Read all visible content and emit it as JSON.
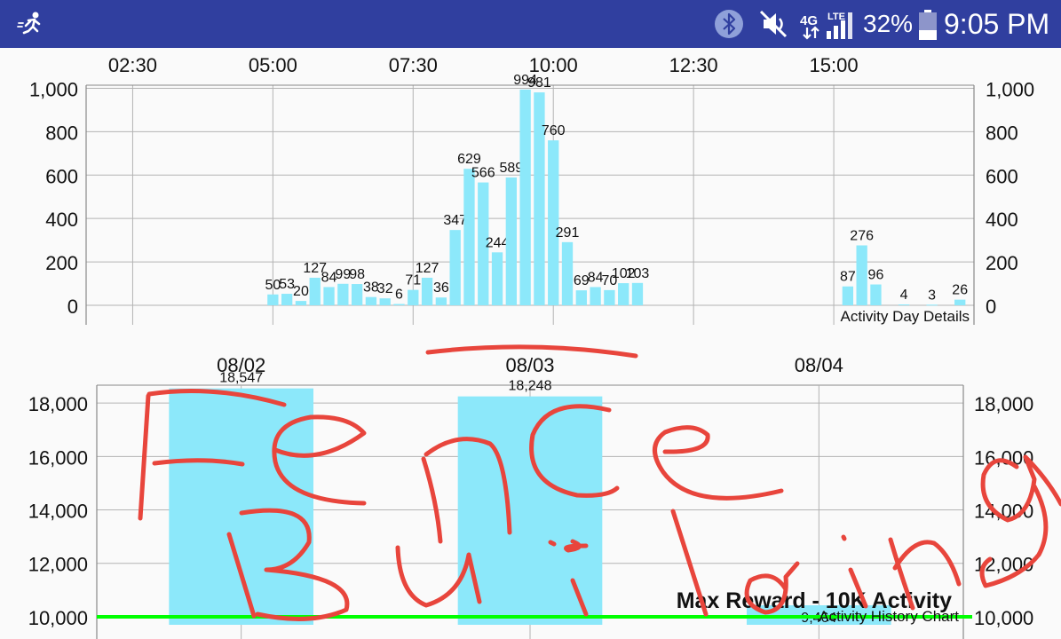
{
  "status_bar": {
    "app_icon": "running-person-icon",
    "icons": [
      "bluetooth-icon",
      "volume-mute-icon",
      "lte-signal-icon",
      "battery-icon"
    ],
    "network_label_top": "LTE",
    "network_label": "4G",
    "battery_percent": "32%",
    "time": "9:05 PM",
    "colors": {
      "background": "#303f9f",
      "text": "#ffffff"
    }
  },
  "chart_data": [
    {
      "type": "bar",
      "title": "Activity Day Details",
      "x_ticks": [
        "02:30",
        "05:00",
        "07:30",
        "10:00",
        "12:30",
        "15:00"
      ],
      "x_unit": "hour",
      "x_tick_values": [
        2.5,
        5,
        7.5,
        10,
        12.5,
        15
      ],
      "xlim": [
        1.67,
        17.5
      ],
      "ylim": [
        0,
        1100
      ],
      "y_ticks": [
        "0",
        "200",
        "400",
        "600",
        "800",
        "1,000"
      ],
      "y_tick_values": [
        0,
        200,
        400,
        600,
        800,
        1000
      ],
      "bar_interval_hours": 0.25,
      "x": [
        5.0,
        5.25,
        5.5,
        5.75,
        6.0,
        6.25,
        6.5,
        6.75,
        7.0,
        7.25,
        7.5,
        7.75,
        8.0,
        8.25,
        8.5,
        8.75,
        9.0,
        9.25,
        9.5,
        9.75,
        10.0,
        10.25,
        10.5,
        10.75,
        11.0,
        11.25,
        11.5,
        15.25,
        15.5,
        15.75,
        16.25,
        16.75,
        17.25
      ],
      "values": [
        50,
        53,
        20,
        127,
        84,
        99,
        98,
        38,
        32,
        6,
        71,
        127,
        36,
        347,
        629,
        566,
        244,
        589,
        994,
        981,
        760,
        291,
        69,
        84,
        70,
        102,
        103,
        87,
        276,
        96,
        4,
        3,
        26
      ],
      "labels": [
        "50",
        "53",
        "20",
        "127",
        "84",
        "99",
        "98",
        "38",
        "32",
        "6",
        "71",
        "127",
        "36",
        "347",
        "629",
        "566",
        "244",
        "589",
        "994",
        "981",
        "760",
        "291",
        "69",
        "84",
        "70",
        "102",
        "103",
        "87",
        "276",
        "96",
        "4",
        "3",
        "26"
      ],
      "grid": true,
      "dual_y_axis": true,
      "colors": {
        "bar": "#8ce8fa",
        "grid": "#b3b3b3",
        "axis": "#888888"
      }
    },
    {
      "type": "bar",
      "title": "Activity History Chart",
      "categories": [
        "08/02",
        "08/03",
        "08/04"
      ],
      "values": [
        18547,
        18248,
        9464
      ],
      "labels": [
        "18,547",
        "18,248",
        "9,464"
      ],
      "ylim": [
        9500,
        19000
      ],
      "y_ticks": [
        "10,000",
        "12,000",
        "14,000",
        "16,000",
        "18,000"
      ],
      "y_tick_values": [
        10000,
        12000,
        14000,
        16000,
        18000
      ],
      "reference_line": {
        "value": 10000,
        "label": "Max Reward - 10K Activity",
        "color": "#00ff00"
      },
      "grid": true,
      "dual_y_axis": true,
      "colors": {
        "bar": "#8ce8fa",
        "grid": "#b3b3b3",
        "axis": "#888888"
      }
    }
  ],
  "annotation": {
    "handwritten_text": "Fence Building",
    "color": "#e8453c"
  }
}
